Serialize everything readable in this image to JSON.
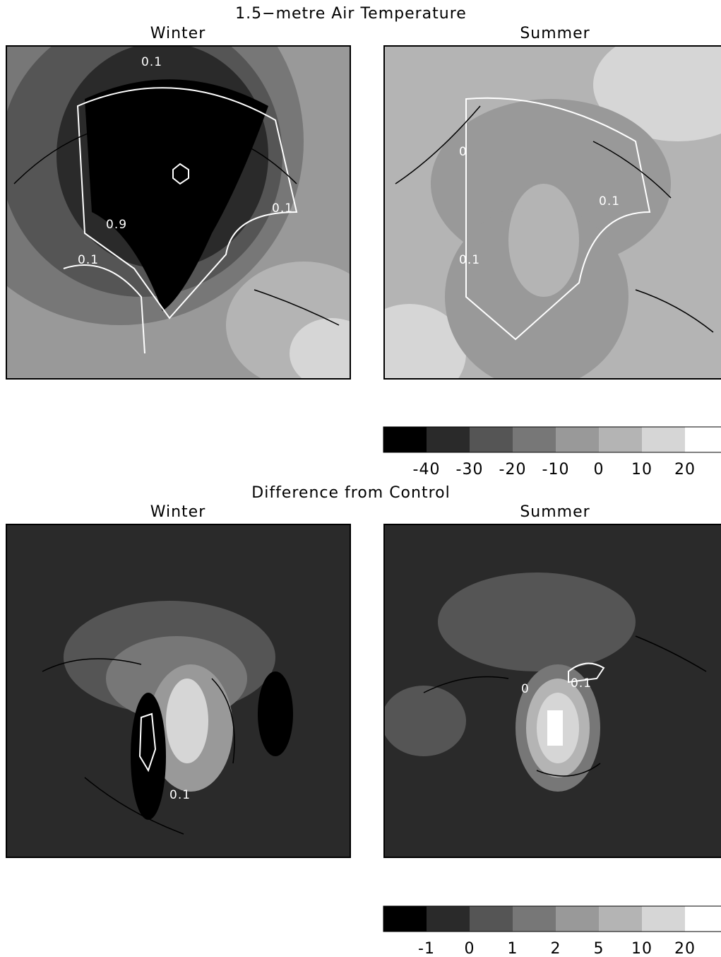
{
  "title_top": "1.5−metre Air Temperature",
  "title_bottom": "Difference from Control",
  "panels": [
    {
      "label": "Winter",
      "contour_labels": [
        "0.1",
        "0.9",
        "0.1",
        "0.1"
      ]
    },
    {
      "label": "Summer",
      "contour_labels": [
        "0",
        "0.1",
        "0.1"
      ]
    },
    {
      "label": "Winter",
      "contour_labels": [
        "0.1"
      ]
    },
    {
      "label": "Summer",
      "contour_labels": [
        "0",
        "0.1"
      ]
    }
  ],
  "colorbars": [
    {
      "colors": [
        "#000000",
        "#2a2a2a",
        "#555555",
        "#777777",
        "#999999",
        "#b4b4b4",
        "#d6d6d6",
        "#ffffff"
      ],
      "ticks": [
        -40,
        -30,
        -20,
        -10,
        0,
        10,
        20
      ]
    },
    {
      "colors": [
        "#000000",
        "#2a2a2a",
        "#555555",
        "#777777",
        "#999999",
        "#b4b4b4",
        "#d6d6d6",
        "#ffffff"
      ],
      "ticks": [
        -1,
        0,
        1,
        2,
        5,
        10,
        20
      ]
    }
  ]
}
